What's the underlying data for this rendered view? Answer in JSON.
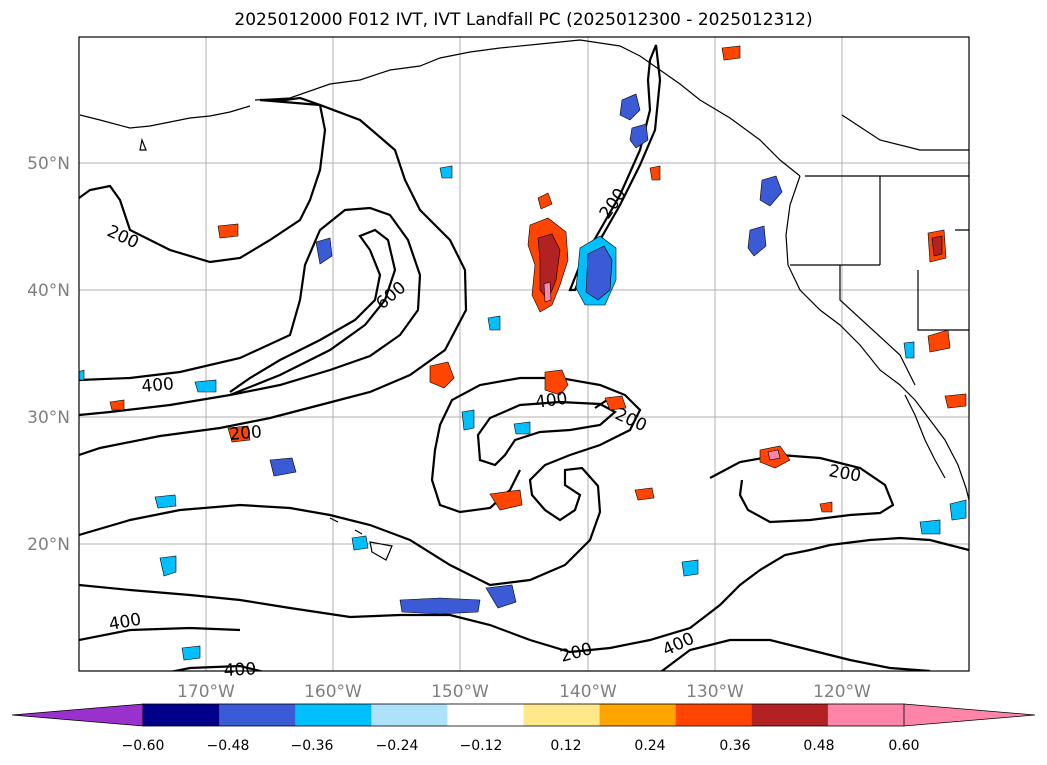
{
  "title": "2025012000 F012 IVT, IVT Landfall PC (2025012300 - 2025012312)",
  "axes": {
    "lat_labels": [
      "50°N",
      "40°N",
      "30°N",
      "20°N"
    ],
    "lon_labels": [
      "170°W",
      "160°W",
      "150°W",
      "140°W",
      "130°W",
      "120°W"
    ]
  },
  "contour_labels": [
    "200",
    "600",
    "400",
    "400",
    "200",
    "200",
    "200",
    "400",
    "200",
    "400",
    "400",
    "200"
  ],
  "colorbar": {
    "colors": [
      "#9932CC",
      "#00008B",
      "#3A5BD5",
      "#00BFFF",
      "#ADE2FA",
      "#FFFFFF",
      "#FFE88A",
      "#FFA500",
      "#FF4500",
      "#B22222",
      "#FF85A8",
      "#FF85A8"
    ],
    "under_color": "#9932CC",
    "over_color": "#FF85A8",
    "ticks": [
      "−0.60",
      "−0.48",
      "−0.36",
      "−0.24",
      "−0.12",
      "0.12",
      "0.24",
      "0.36",
      "0.48",
      "0.60"
    ]
  }
}
